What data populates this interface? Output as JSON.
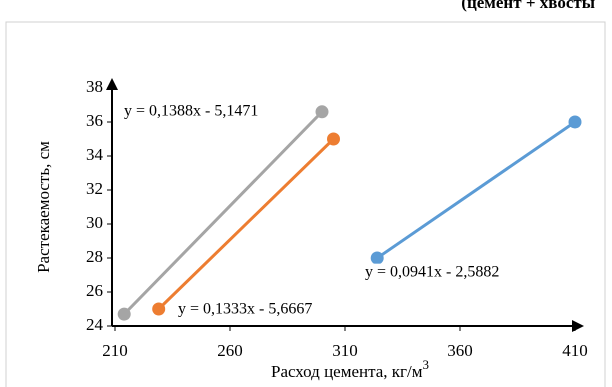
{
  "chart_data": {
    "type": "line",
    "title": "(цемент + хвосты",
    "x_label": "Расход цемента, кг/м",
    "x_label_sup": "3",
    "y_label": "Растекаемость, см",
    "xlim": [
      210,
      410
    ],
    "xticks": [
      210,
      260,
      310,
      360,
      410
    ],
    "ylim": [
      24,
      38
    ],
    "yticks": [
      24,
      26,
      28,
      30,
      32,
      34,
      36,
      38
    ],
    "series": [
      {
        "color": "#5b9bd5",
        "x": [
          324,
          410
        ],
        "values": [
          28,
          36
        ]
      },
      {
        "color": "#ed7d31",
        "x": [
          229,
          305
        ],
        "values": [
          25,
          35
        ]
      },
      {
        "color": "#a5a5a5",
        "x": [
          214,
          300
        ],
        "values": [
          24.7,
          36.6
        ]
      }
    ],
    "annotations": [
      "y = 0,0941x - 2,5882",
      "y = 0,1333x - 5,6667",
      "y = 0,1388x - 5,1471"
    ]
  }
}
